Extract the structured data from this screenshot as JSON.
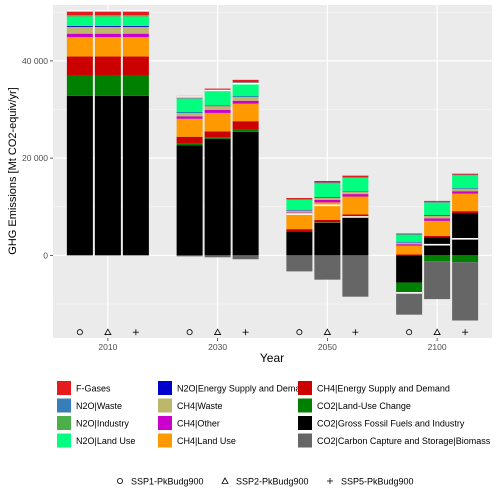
{
  "chart_data": {
    "type": "bar",
    "stacked": true,
    "xlabel": "Year",
    "ylabel": "GHG Emissions [Mt CO2-equiv/yr]",
    "ylim": [
      -17000,
      51500
    ],
    "yticks": [
      -20000,
      0,
      20000,
      40000
    ],
    "ytick_labels": [
      "",
      "0",
      "20 000",
      "40 000"
    ],
    "grid": true,
    "categories": [
      "2010",
      "2030",
      "2050",
      "2100"
    ],
    "scenarios": [
      {
        "name": "SSP1-PkBudg900",
        "marker": "circle"
      },
      {
        "name": "SSP2-PkBudg900",
        "marker": "triangle"
      },
      {
        "name": "SSP5-PkBudg900",
        "marker": "plus"
      }
    ],
    "stack_order": [
      "CO2|Gross Fossil Fuels and Industry",
      "CO2|Land-Use Change",
      "CH4|Energy Supply and Demand",
      "CH4|Land Use",
      "CH4|Other",
      "CH4|Waste",
      "N2O|Energy Supply and Demand",
      "N2O|Land Use",
      "N2O|Industry",
      "N2O|Waste",
      "F-Gases"
    ],
    "series": [
      {
        "name": "F-Gases",
        "color": "#e41a1c"
      },
      {
        "name": "N2O|Waste",
        "color": "#377eb8"
      },
      {
        "name": "N2O|Industry",
        "color": "#4daf4a"
      },
      {
        "name": "N2O|Land Use",
        "color": "#00ff7f"
      },
      {
        "name": "N2O|Energy Supply and Demand",
        "color": "#0000cd"
      },
      {
        "name": "CH4|Waste",
        "color": "#bdb76b"
      },
      {
        "name": "CH4|Other",
        "color": "#cc00cc"
      },
      {
        "name": "CH4|Land Use",
        "color": "#ff9900"
      },
      {
        "name": "CH4|Energy Supply and Demand",
        "color": "#cc0000"
      },
      {
        "name": "CO2|Land-Use Change",
        "color": "#008000"
      },
      {
        "name": "CO2|Gross Fossil Fuels and Industry",
        "color": "#000000"
      },
      {
        "name": "CO2|Carbon Capture and Storage|Biomass",
        "color": "#666666"
      }
    ],
    "bars": [
      {
        "year": "2010",
        "scenario": "SSP1-PkBudg900",
        "ccs": 0,
        "values": {
          "CO2|Gross Fossil Fuels and Industry": 32800,
          "CO2|Land-Use Change": 4300,
          "CH4|Energy Supply and Demand": 3800,
          "CH4|Land Use": 4000,
          "CH4|Other": 700,
          "CH4|Waste": 1400,
          "N2O|Energy Supply and Demand": 200,
          "N2O|Land Use": 1900,
          "N2O|Industry": 200,
          "N2O|Waste": 100,
          "F-Gases": 900
        }
      },
      {
        "year": "2010",
        "scenario": "SSP2-PkBudg900",
        "ccs": 0,
        "values": {
          "CO2|Gross Fossil Fuels and Industry": 32800,
          "CO2|Land-Use Change": 4300,
          "CH4|Energy Supply and Demand": 3800,
          "CH4|Land Use": 4000,
          "CH4|Other": 700,
          "CH4|Waste": 1400,
          "N2O|Energy Supply and Demand": 200,
          "N2O|Land Use": 1900,
          "N2O|Industry": 200,
          "N2O|Waste": 100,
          "F-Gases": 900
        }
      },
      {
        "year": "2010",
        "scenario": "SSP5-PkBudg900",
        "ccs": 0,
        "values": {
          "CO2|Gross Fossil Fuels and Industry": 32800,
          "CO2|Land-Use Change": 4300,
          "CH4|Energy Supply and Demand": 3800,
          "CH4|Land Use": 4000,
          "CH4|Other": 700,
          "CH4|Waste": 1400,
          "N2O|Energy Supply and Demand": 200,
          "N2O|Land Use": 1900,
          "N2O|Industry": 200,
          "N2O|Waste": 100,
          "F-Gases": 900
        }
      },
      {
        "year": "2030",
        "scenario": "SSP1-PkBudg900",
        "ccs": -200,
        "values": {
          "CO2|Gross Fossil Fuels and Industry": 22600,
          "CO2|Land-Use Change": 500,
          "CH4|Energy Supply and Demand": 1300,
          "CH4|Land Use": 3700,
          "CH4|Other": 500,
          "CH4|Waste": 700,
          "N2O|Energy Supply and Demand": 100,
          "N2O|Land Use": 2800,
          "N2O|Industry": 100,
          "N2O|Waste": 100,
          "F-Gases": 400
        }
      },
      {
        "year": "2030",
        "scenario": "SSP2-PkBudg900",
        "ccs": -400,
        "values": {
          "CO2|Gross Fossil Fuels and Industry": 24000,
          "CO2|Land-Use Change": 300,
          "CH4|Energy Supply and Demand": 1200,
          "CH4|Land Use": 3800,
          "CH4|Other": 600,
          "CH4|Waste": 800,
          "N2O|Energy Supply and Demand": 100,
          "N2O|Land Use": 2800,
          "N2O|Industry": 100,
          "N2O|Waste": 100,
          "F-Gases": 500
        }
      },
      {
        "year": "2030",
        "scenario": "SSP5-PkBudg900",
        "ccs": -800,
        "values": {
          "CO2|Gross Fossil Fuels and Industry": 25400,
          "CO2|Land-Use Change": 500,
          "CH4|Energy Supply and Demand": 1700,
          "CH4|Land Use": 3600,
          "CH4|Other": 600,
          "CH4|Waste": 800,
          "N2O|Energy Supply and Demand": 100,
          "N2O|Land Use": 2700,
          "N2O|Industry": 100,
          "N2O|Waste": 100,
          "F-Gases": 500
        }
      },
      {
        "year": "2050",
        "scenario": "SSP1-PkBudg900",
        "ccs": -3300,
        "values": {
          "CO2|Gross Fossil Fuels and Industry": 4900,
          "CO2|Land-Use Change": 100,
          "CH4|Energy Supply and Demand": 400,
          "CH4|Land Use": 3000,
          "CH4|Other": 400,
          "CH4|Waste": 400,
          "N2O|Energy Supply and Demand": 100,
          "N2O|Land Use": 2100,
          "N2O|Industry": 100,
          "N2O|Waste": 100,
          "F-Gases": 200
        }
      },
      {
        "year": "2050",
        "scenario": "SSP2-PkBudg900",
        "ccs": -5000,
        "values": {
          "CO2|Gross Fossil Fuels and Industry": 6700,
          "CO2|Land-Use Change": 100,
          "CH4|Energy Supply and Demand": 500,
          "CH4|Land Use": 3600,
          "CH4|Other": 500,
          "CH4|Waste": 500,
          "N2O|Energy Supply and Demand": 100,
          "N2O|Land Use": 2800,
          "N2O|Industry": 100,
          "N2O|Waste": 100,
          "F-Gases": 300
        }
      },
      {
        "year": "2050",
        "scenario": "SSP5-PkBudg900",
        "ccs": -8500,
        "values": {
          "CO2|Gross Fossil Fuels and Industry": 7800,
          "CO2|Land-Use Change": 0,
          "CH4|Energy Supply and Demand": 600,
          "CH4|Land Use": 3700,
          "CH4|Other": 500,
          "CH4|Waste": 500,
          "N2O|Energy Supply and Demand": 100,
          "N2O|Land Use": 2700,
          "N2O|Industry": 100,
          "N2O|Waste": 100,
          "F-Gases": 300
        }
      },
      {
        "year": "2100",
        "scenario": "SSP1-PkBudg900",
        "ccs": -4300,
        "values": {
          "CO2|Gross Fossil Fuels and Industry": -5600,
          "CO2|Land-Use Change": -2300,
          "CH4|Energy Supply and Demand": 200,
          "CH4|Land Use": 1800,
          "CH4|Other": 300,
          "CH4|Waste": 300,
          "N2O|Energy Supply and Demand": 100,
          "N2O|Land Use": 1500,
          "N2O|Industry": 100,
          "N2O|Waste": 100,
          "F-Gases": 100
        }
      },
      {
        "year": "2100",
        "scenario": "SSP2-PkBudg900",
        "ccs": -7800,
        "values": {
          "CO2|Gross Fossil Fuels and Industry": 3700,
          "CO2|Land-Use Change": -1200,
          "CH4|Energy Supply and Demand": 300,
          "CH4|Land Use": 3100,
          "CH4|Other": 500,
          "CH4|Waste": 500,
          "N2O|Energy Supply and Demand": 100,
          "N2O|Land Use": 2600,
          "N2O|Industry": 100,
          "N2O|Waste": 100,
          "F-Gases": 200
        }
      },
      {
        "year": "2100",
        "scenario": "SSP5-PkBudg900",
        "ccs": -12000,
        "values": {
          "CO2|Gross Fossil Fuels and Industry": 8700,
          "CO2|Land-Use Change": -1400,
          "CH4|Energy Supply and Demand": 400,
          "CH4|Land Use": 3600,
          "CH4|Other": 500,
          "CH4|Waste": 500,
          "N2O|Energy Supply and Demand": 100,
          "N2O|Land Use": 2600,
          "N2O|Industry": 100,
          "N2O|Waste": 100,
          "F-Gases": 200
        }
      }
    ]
  }
}
